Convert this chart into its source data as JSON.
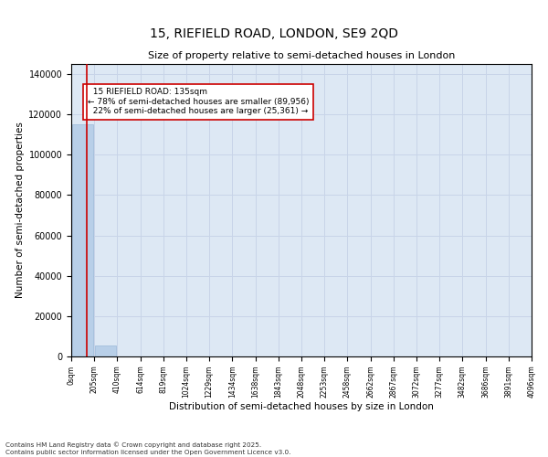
{
  "title": "15, RIEFIELD ROAD, LONDON, SE9 2QD",
  "subtitle": "Size of property relative to semi-detached houses in London",
  "xlabel": "Distribution of semi-detached houses by size in London",
  "ylabel": "Number of semi-detached properties",
  "property_size": 135,
  "property_label": "15 RIEFIELD ROAD: 135sqm",
  "pct_smaller": 78,
  "count_smaller": 89956,
  "pct_larger": 22,
  "count_larger": 25361,
  "bar_color": "#b8cfe8",
  "bar_edge_color": "#9ab8d8",
  "red_line_color": "#cc0000",
  "annotation_box_edge": "#cc0000",
  "grid_color": "#c8d4e8",
  "background_color": "#dde8f4",
  "ylim": [
    0,
    145000
  ],
  "yticks": [
    0,
    20000,
    40000,
    60000,
    80000,
    100000,
    120000,
    140000
  ],
  "bin_edges": [
    0,
    205,
    410,
    614,
    819,
    1024,
    1229,
    1434,
    1638,
    1843,
    2048,
    2253,
    2458,
    2662,
    2867,
    3072,
    3277,
    3482,
    3686,
    3891,
    4096
  ],
  "bin_labels": [
    "0sqm",
    "205sqm",
    "410sqm",
    "614sqm",
    "819sqm",
    "1024sqm",
    "1229sqm",
    "1434sqm",
    "1638sqm",
    "1843sqm",
    "2048sqm",
    "2253sqm",
    "2458sqm",
    "2662sqm",
    "2867sqm",
    "3072sqm",
    "3277sqm",
    "3482sqm",
    "3686sqm",
    "3891sqm",
    "4096sqm"
  ],
  "bar_heights": [
    115000,
    5500,
    0,
    0,
    0,
    0,
    0,
    0,
    0,
    0,
    0,
    0,
    0,
    0,
    0,
    0,
    0,
    0,
    0,
    0
  ],
  "footnote": "Contains HM Land Registry data © Crown copyright and database right 2025.\nContains public sector information licensed under the Open Government Licence v3.0."
}
